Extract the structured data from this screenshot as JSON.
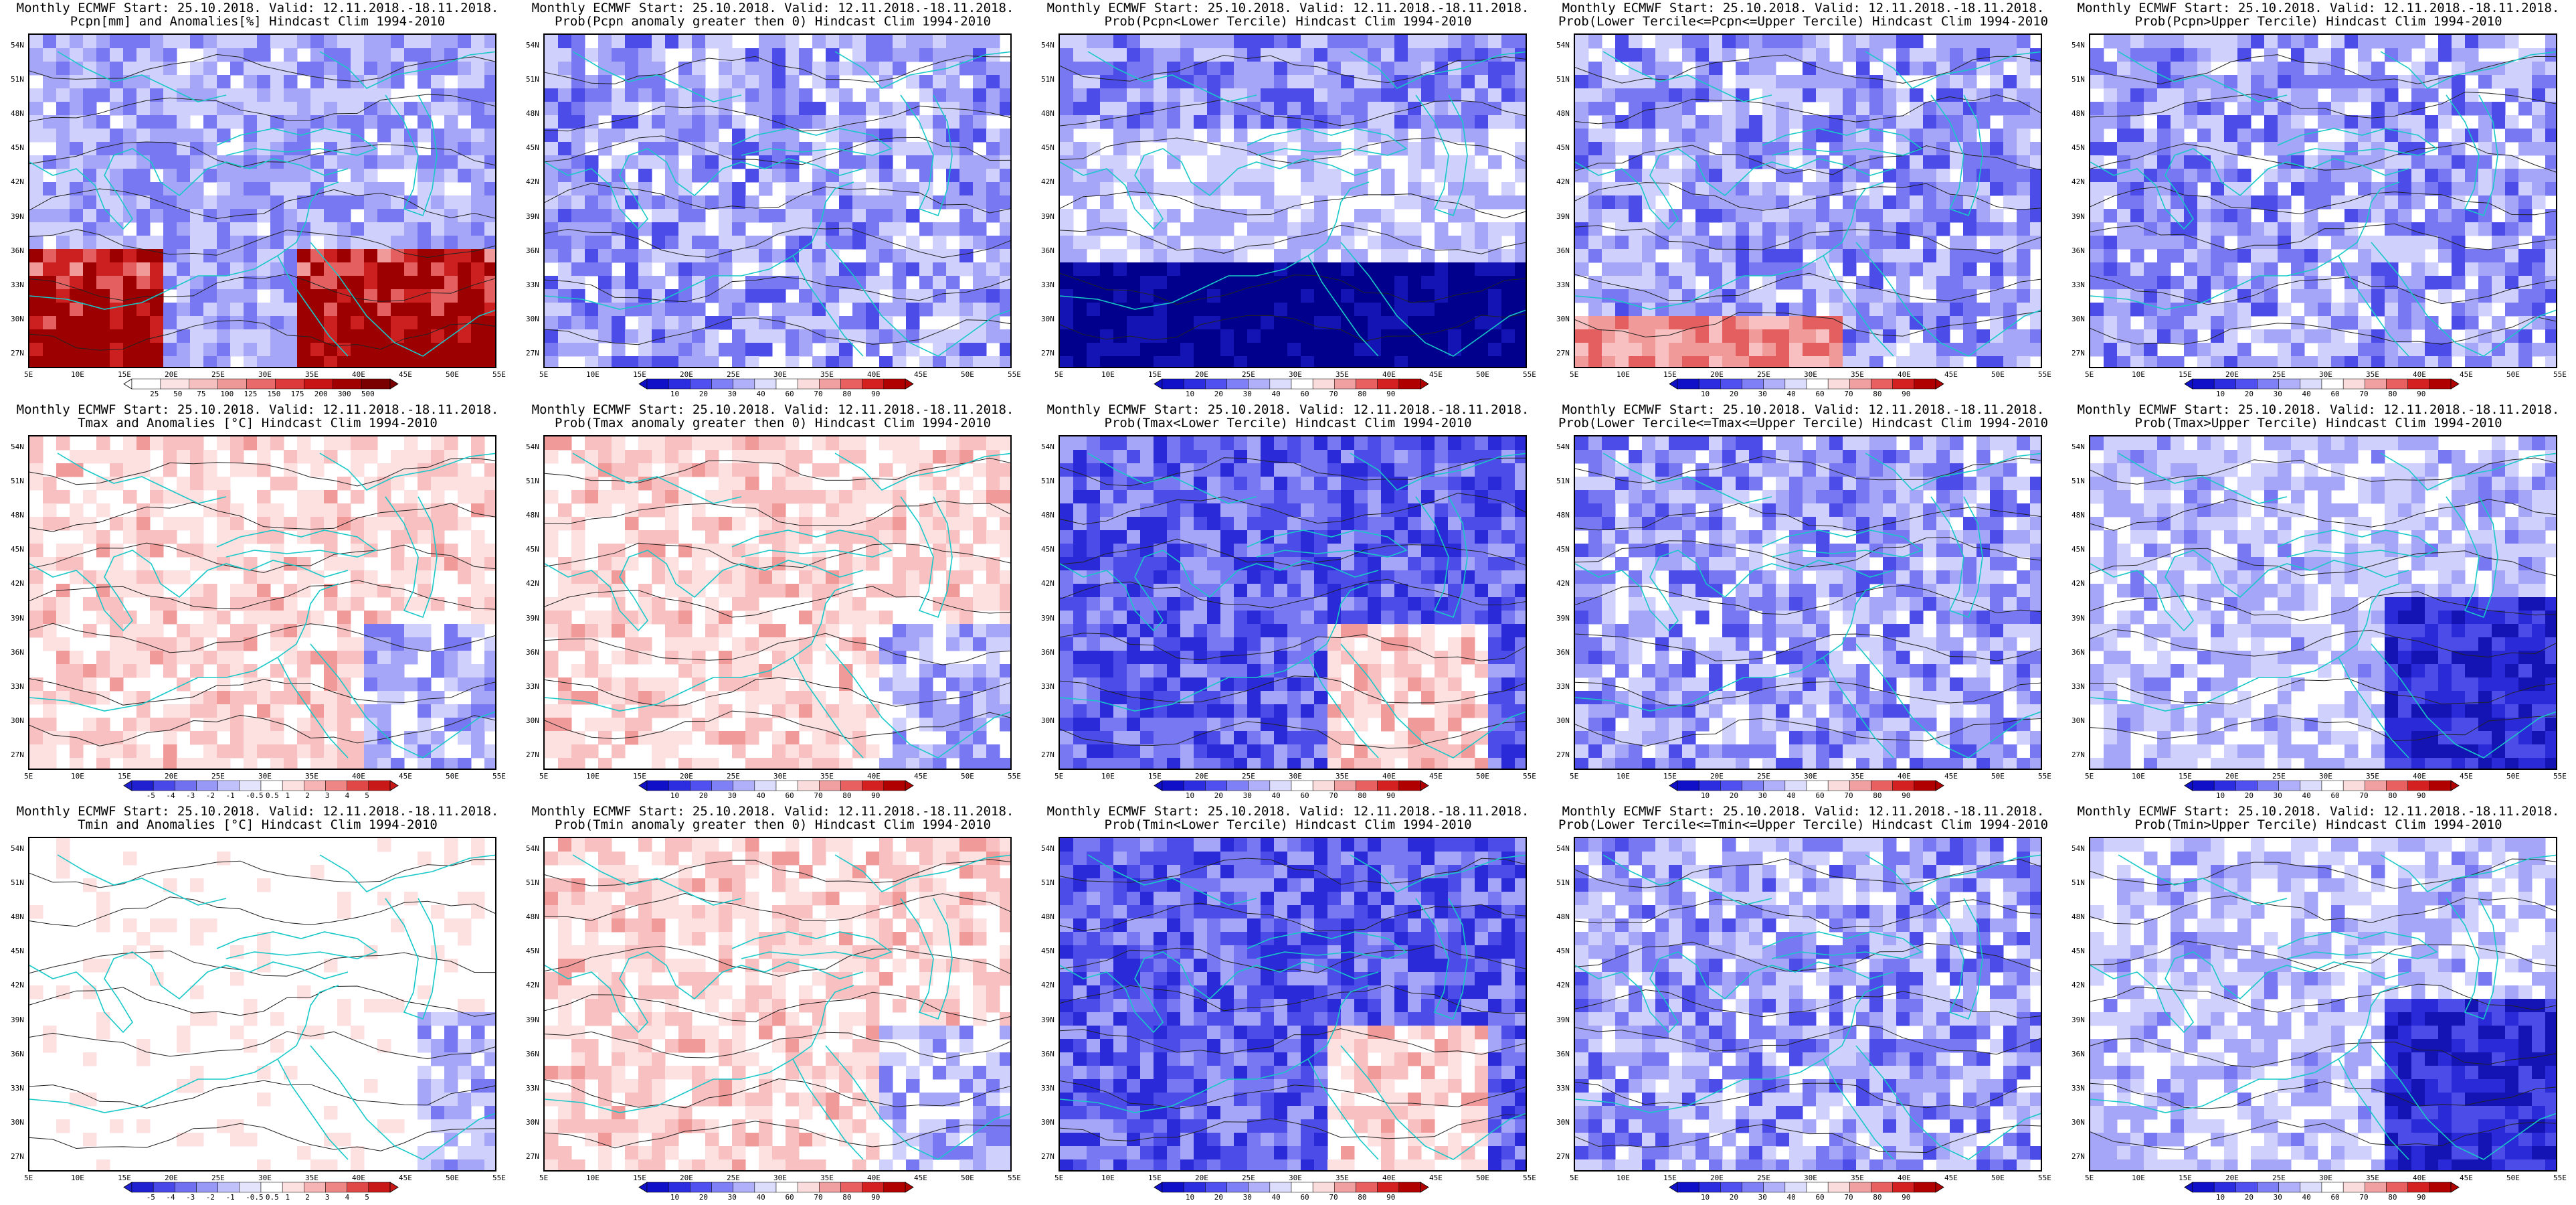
{
  "figure_title": "",
  "lat_labels": [
    "54N",
    "51N",
    "48N",
    "45N",
    "42N",
    "39N",
    "36N",
    "33N",
    "30N",
    "27N"
  ],
  "lon_labels": [
    "5E",
    "10E",
    "15E",
    "20E",
    "25E",
    "30E",
    "35E",
    "40E",
    "45E",
    "50E",
    "55E"
  ],
  "colorbars": {
    "precip": {
      "colors": [
        "#ffffff",
        "#fbe3e3",
        "#f5bfbf",
        "#ef9898",
        "#e86a6a",
        "#dd3b3b",
        "#c81414",
        "#a00000",
        "#7a0000"
      ],
      "labels": [
        "25",
        "50",
        "75",
        "100",
        "125",
        "150",
        "175",
        "200",
        "300",
        "500"
      ]
    },
    "prob": {
      "colors": [
        "#1010c8",
        "#2c2ce0",
        "#5050f0",
        "#8080f6",
        "#b0b0fa",
        "#dcdcfd",
        "#ffffff",
        "#fadcdc",
        "#f0a0a0",
        "#e86060",
        "#d42020",
        "#b00000"
      ],
      "labels": [
        "10",
        "20",
        "30",
        "40",
        "60",
        "70",
        "80",
        "90"
      ]
    },
    "anom": {
      "colors": [
        "#2020d0",
        "#4848e8",
        "#7070f0",
        "#9898f6",
        "#c0c0fa",
        "#e4e4fd",
        "#ffffff",
        "#fde0e0",
        "#f6b4b4",
        "#ee8686",
        "#e04848",
        "#c81818"
      ],
      "labels": [
        "-5",
        "-4",
        "-3",
        "-2",
        "-1",
        "-0.5",
        "0.5",
        "1",
        "2",
        "3",
        "4",
        "5"
      ]
    }
  },
  "panels": [
    {
      "row": 0,
      "col": 0,
      "title1": "Monthly ECMWF Start: 25.10.2018. Valid: 12.11.2018.-18.11.2018.",
      "title2": "Pcpn[mm] and Anomalies[%] Hindcast Clim 1994-2010",
      "colorbar": "precip",
      "field": "precip"
    },
    {
      "row": 0,
      "col": 1,
      "title1": "Monthly ECMWF Start: 25.10.2018. Valid: 12.11.2018.-18.11.2018.",
      "title2": "Prob(Pcpn anomaly greater then 0) Hindcast Clim 1994-2010",
      "colorbar": "prob",
      "field": "blue_mod"
    },
    {
      "row": 0,
      "col": 2,
      "title1": "Monthly ECMWF Start: 25.10.2018. Valid: 12.11.2018.-18.11.2018.",
      "title2": "Prob(Pcpn<Lower Tercile) Hindcast Clim 1994-2010",
      "colorbar": "prob",
      "field": "blue_strong_south"
    },
    {
      "row": 0,
      "col": 3,
      "title1": "Monthly ECMWF Start: 25.10.2018. Valid: 12.11.2018.-18.11.2018.",
      "title2": "Prob(Lower Tercile<=Pcpn<=Upper Tercile) Hindcast Clim 1994-2010",
      "colorbar": "prob",
      "field": "blue_red_south"
    },
    {
      "row": 0,
      "col": 4,
      "title1": "Monthly ECMWF Start: 25.10.2018. Valid: 12.11.2018.-18.11.2018.",
      "title2": "Prob(Pcpn>Upper Tercile) Hindcast Clim 1994-2010",
      "colorbar": "prob",
      "field": "blue_mod"
    },
    {
      "row": 1,
      "col": 0,
      "title1": "Monthly ECMWF Start: 25.10.2018. Valid: 12.11.2018.-18.11.2018.",
      "title2": "Tmax and Anomalies [°C] Hindcast Clim 1994-2010",
      "colorbar": "anom",
      "field": "red_light"
    },
    {
      "row": 1,
      "col": 1,
      "title1": "Monthly ECMWF Start: 25.10.2018. Valid: 12.11.2018.-18.11.2018.",
      "title2": "Prob(Tmax anomaly greater then 0) Hindcast Clim 1994-2010",
      "colorbar": "prob",
      "field": "red_light"
    },
    {
      "row": 1,
      "col": 2,
      "title1": "Monthly ECMWF Start: 25.10.2018. Valid: 12.11.2018.-18.11.2018.",
      "title2": "Prob(Tmax<Lower Tercile) Hindcast Clim 1994-2010",
      "colorbar": "prob",
      "field": "blue_strong"
    },
    {
      "row": 1,
      "col": 3,
      "title1": "Monthly ECMWF Start: 25.10.2018. Valid: 12.11.2018.-18.11.2018.",
      "title2": "Prob(Lower Tercile<=Tmax<=Upper Tercile) Hindcast Clim 1994-2010",
      "colorbar": "prob",
      "field": "blue_mod"
    },
    {
      "row": 1,
      "col": 4,
      "title1": "Monthly ECMWF Start: 25.10.2018. Valid: 12.11.2018.-18.11.2018.",
      "title2": "Prob(Tmax>Upper Tercile) Hindcast Clim 1994-2010",
      "colorbar": "prob",
      "field": "blue_se"
    },
    {
      "row": 2,
      "col": 0,
      "title1": "Monthly ECMWF Start: 25.10.2018. Valid: 12.11.2018.-18.11.2018.",
      "title2": "Tmin and Anomalies [°C] Hindcast Clim 1994-2010",
      "colorbar": "anom",
      "field": "white_blue"
    },
    {
      "row": 2,
      "col": 1,
      "title1": "Monthly ECMWF Start: 25.10.2018. Valid: 12.11.2018.-18.11.2018.",
      "title2": "Prob(Tmin anomaly greater then 0) Hindcast Clim 1994-2010",
      "colorbar": "prob",
      "field": "red_light"
    },
    {
      "row": 2,
      "col": 2,
      "title1": "Monthly ECMWF Start: 25.10.2018. Valid: 12.11.2018.-18.11.2018.",
      "title2": "Prob(Tmin<Lower Tercile) Hindcast Clim 1994-2010",
      "colorbar": "prob",
      "field": "blue_strong"
    },
    {
      "row": 2,
      "col": 3,
      "title1": "Monthly ECMWF Start: 25.10.2018. Valid: 12.11.2018.-18.11.2018.",
      "title2": "Prob(Lower Tercile<=Tmin<=Upper Tercile) Hindcast Clim 1994-2010",
      "colorbar": "prob",
      "field": "blue_mod"
    },
    {
      "row": 2,
      "col": 4,
      "title1": "Monthly ECMWF Start: 25.10.2018. Valid: 12.11.2018.-18.11.2018.",
      "title2": "Prob(Tmin>Upper Tercile) Hindcast Clim 1994-2010",
      "colorbar": "prob",
      "field": "blue_se"
    }
  ]
}
